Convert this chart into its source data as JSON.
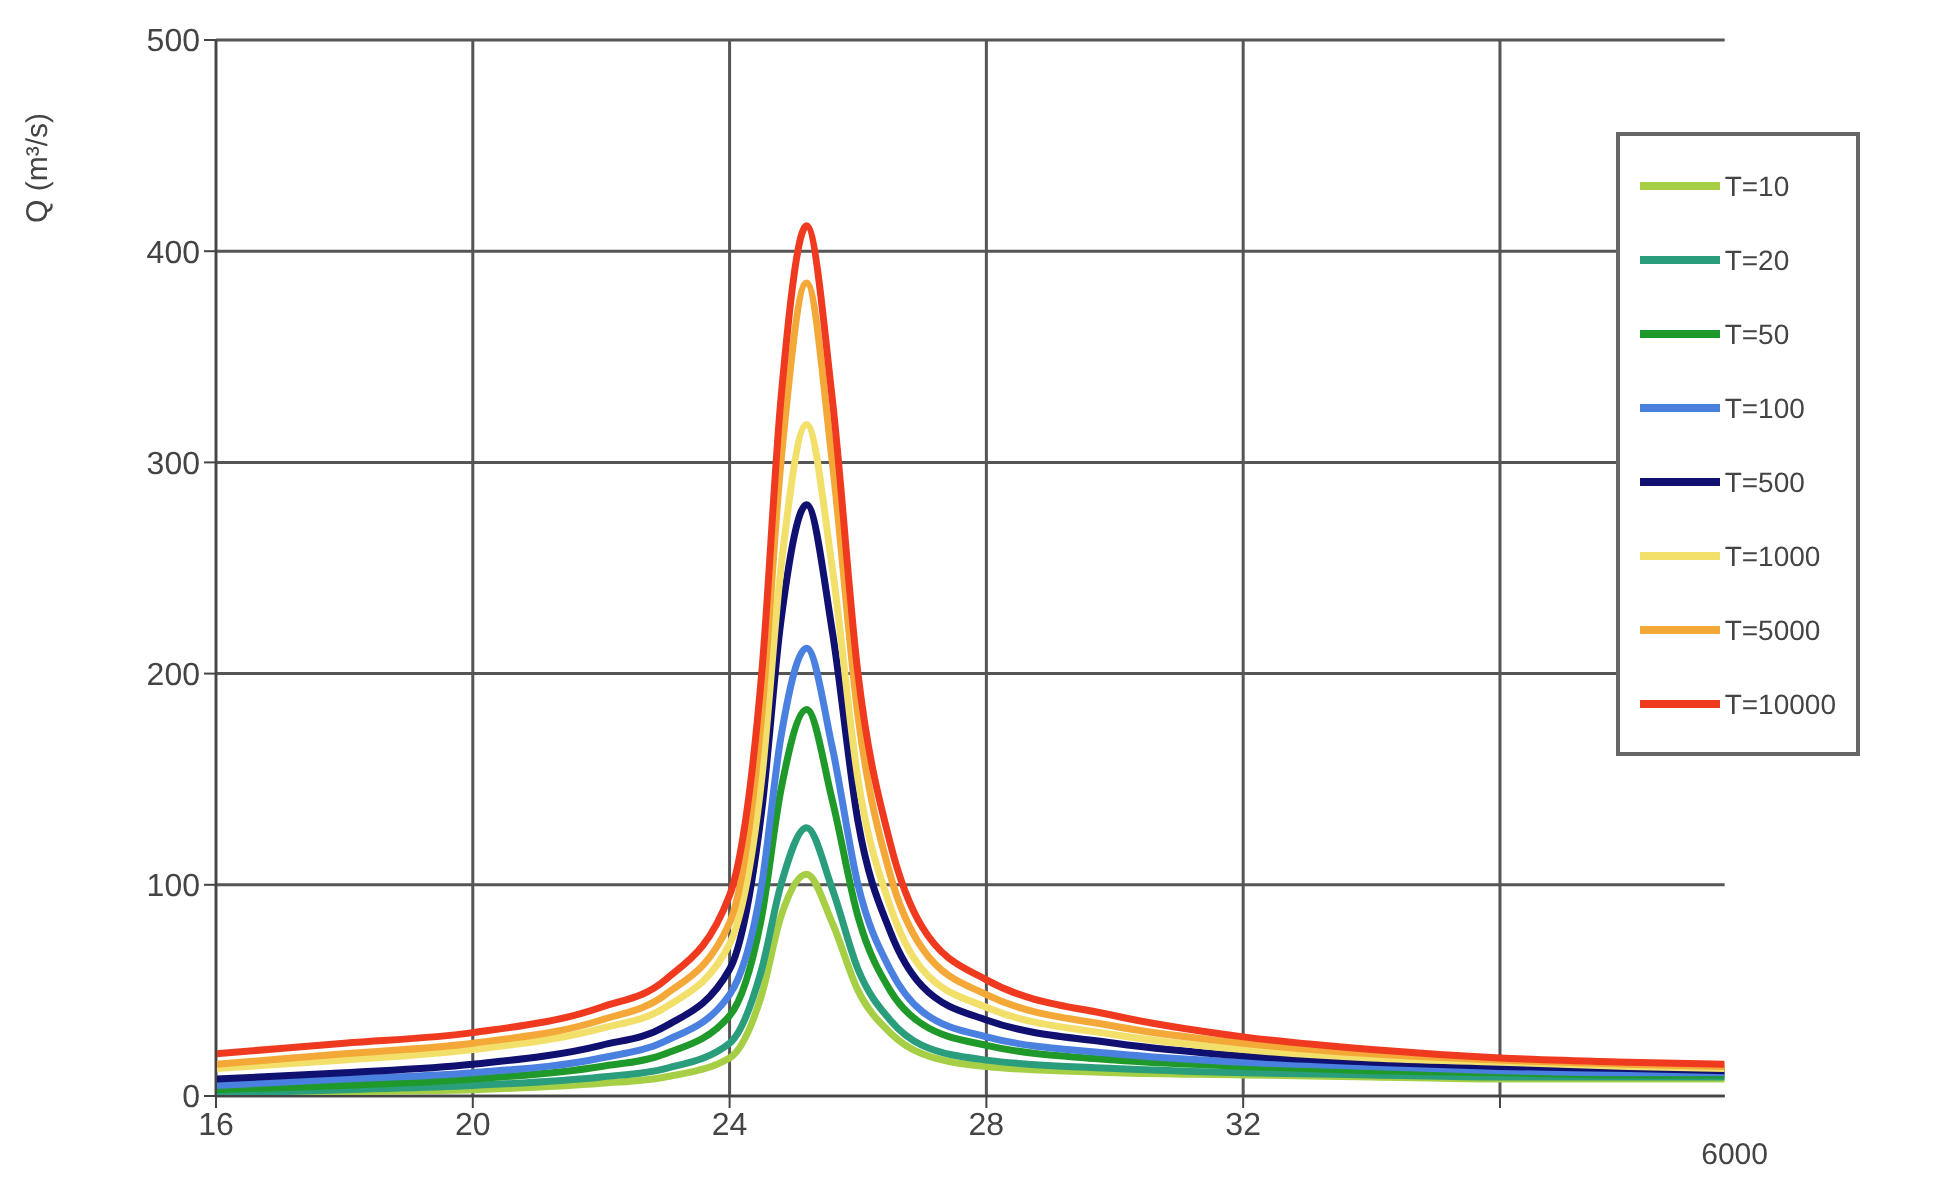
{
  "chart_data": {
    "type": "line",
    "ylabel": "Q (m³/s)",
    "x": [
      16,
      18,
      20,
      22,
      23,
      24,
      24.5,
      24.8,
      25.2,
      25.6,
      26,
      26.5,
      27,
      28,
      30,
      32,
      34,
      36,
      38,
      39.5
    ],
    "series": [
      {
        "name": "T=10",
        "color": "#a6cf45",
        "values": [
          0,
          2,
          3,
          6,
          9,
          18,
          48,
          85,
          105,
          82,
          50,
          30,
          20,
          14,
          11,
          10,
          9,
          8,
          8,
          8
        ]
      },
      {
        "name": "T=20",
        "color": "#2a9d7c",
        "values": [
          1,
          3,
          5,
          9,
          13,
          25,
          60,
          100,
          127,
          98,
          60,
          36,
          24,
          17,
          13,
          11,
          10,
          9,
          9,
          9
        ]
      },
      {
        "name": "T=50",
        "color": "#1f9a2a",
        "values": [
          3,
          5,
          8,
          14,
          20,
          38,
          85,
          145,
          183,
          140,
          85,
          50,
          34,
          24,
          17,
          14,
          12,
          11,
          10,
          10
        ]
      },
      {
        "name": "T=100",
        "color": "#4a80e0",
        "values": [
          5,
          8,
          11,
          18,
          26,
          48,
          100,
          170,
          212,
          165,
          100,
          60,
          40,
          28,
          20,
          16,
          14,
          12,
          11,
          11
        ]
      },
      {
        "name": "T=500",
        "color": "#101070",
        "values": [
          8,
          11,
          15,
          24,
          33,
          60,
          135,
          225,
          280,
          220,
          130,
          78,
          52,
          36,
          25,
          19,
          16,
          14,
          13,
          12
        ]
      },
      {
        "name": "T=1000",
        "color": "#f2e06a",
        "values": [
          13,
          17,
          22,
          32,
          42,
          72,
          150,
          250,
          318,
          250,
          150,
          90,
          60,
          42,
          29,
          22,
          18,
          16,
          14,
          13
        ]
      },
      {
        "name": "T=5000",
        "color": "#f4a838",
        "values": [
          15,
          20,
          25,
          36,
          48,
          82,
          180,
          300,
          385,
          300,
          180,
          105,
          70,
          48,
          33,
          25,
          20,
          17,
          15,
          14
        ]
      },
      {
        "name": "T=10000",
        "color": "#f03a20",
        "values": [
          20,
          25,
          30,
          42,
          55,
          95,
          200,
          330,
          412,
          330,
          200,
          120,
          80,
          55,
          38,
          28,
          22,
          18,
          16,
          15
        ]
      }
    ],
    "xlim": [
      16,
      39.5
    ],
    "xticks": [
      16,
      20,
      24,
      28,
      32,
      {
        "value": 36,
        "label": null
      }
    ],
    "ylim": [
      0,
      500
    ],
    "yticks": [
      0,
      100,
      200,
      300,
      400,
      500
    ],
    "grid": true,
    "legend": "top right",
    "marker": "none",
    "line_style": "solid",
    "annotations": [
      "6000"
    ]
  }
}
